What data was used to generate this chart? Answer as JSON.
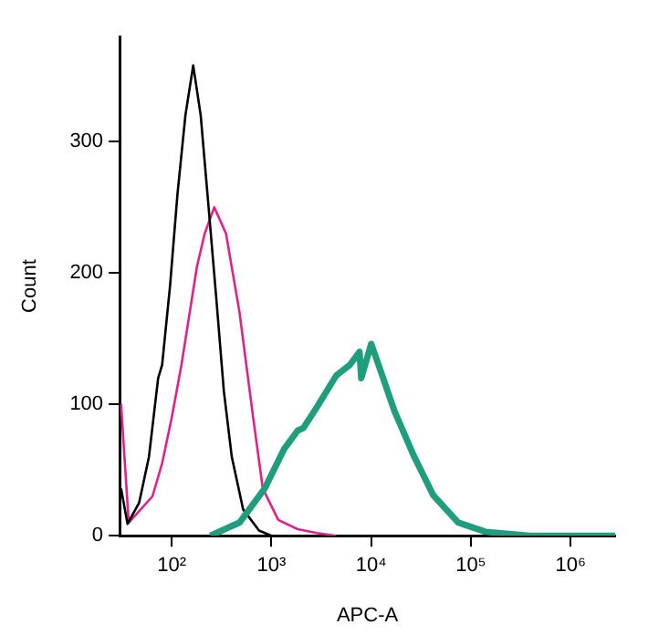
{
  "chart_data": {
    "type": "line",
    "xlabel": "APC-A",
    "ylabel": "Count",
    "log": "x",
    "grid": false,
    "legend": false,
    "marker": "none",
    "xlim": [
      30,
      2800000
    ],
    "xticks": [
      {
        "value": 100,
        "label": "10²"
      },
      {
        "value": 1000,
        "label": "10³"
      },
      {
        "value": 10000,
        "label": "10⁴"
      },
      {
        "value": 100000,
        "label": "10⁵"
      },
      {
        "value": 1000000,
        "label": "10⁶"
      }
    ],
    "ylim": [
      0,
      380
    ],
    "yticks": [
      0,
      100,
      200,
      300
    ],
    "series": [
      {
        "color": "#e0218a",
        "x": [
          31,
          37,
          64,
          80,
          100,
          125,
          179,
          214,
          267,
          350,
          478,
          655,
          818,
          1170,
          1830,
          2860,
          4470
        ],
        "values": [
          100,
          10,
          30,
          55,
          90,
          130,
          205,
          230,
          250,
          230,
          170,
          90,
          36,
          12,
          5,
          2,
          0
        ]
      },
      {
        "color": "#000000",
        "x": [
          31,
          36,
          47,
          59,
          73,
          80,
          96,
          114,
          137,
          164,
          195,
          234,
          280,
          333,
          400,
          520,
          750,
          1000
        ],
        "values": [
          36,
          9,
          25,
          60,
          120,
          130,
          190,
          260,
          320,
          358,
          320,
          250,
          180,
          110,
          60,
          20,
          4,
          0
        ]
      },
      {
        "color": "#1f9e7e",
        "x": [
          244,
          478,
          855,
          1340,
          1830,
          2090,
          2860,
          4470,
          6110,
          7640,
          7950,
          10000,
          12500,
          17100,
          26700,
          41800,
          74800,
          140000,
          390000,
          2800000
        ],
        "values": [
          0,
          10,
          36,
          66,
          80,
          82,
          98,
          122,
          130,
          140,
          120,
          146,
          125,
          95,
          61,
          31,
          10,
          3,
          0,
          0
        ]
      }
    ]
  }
}
